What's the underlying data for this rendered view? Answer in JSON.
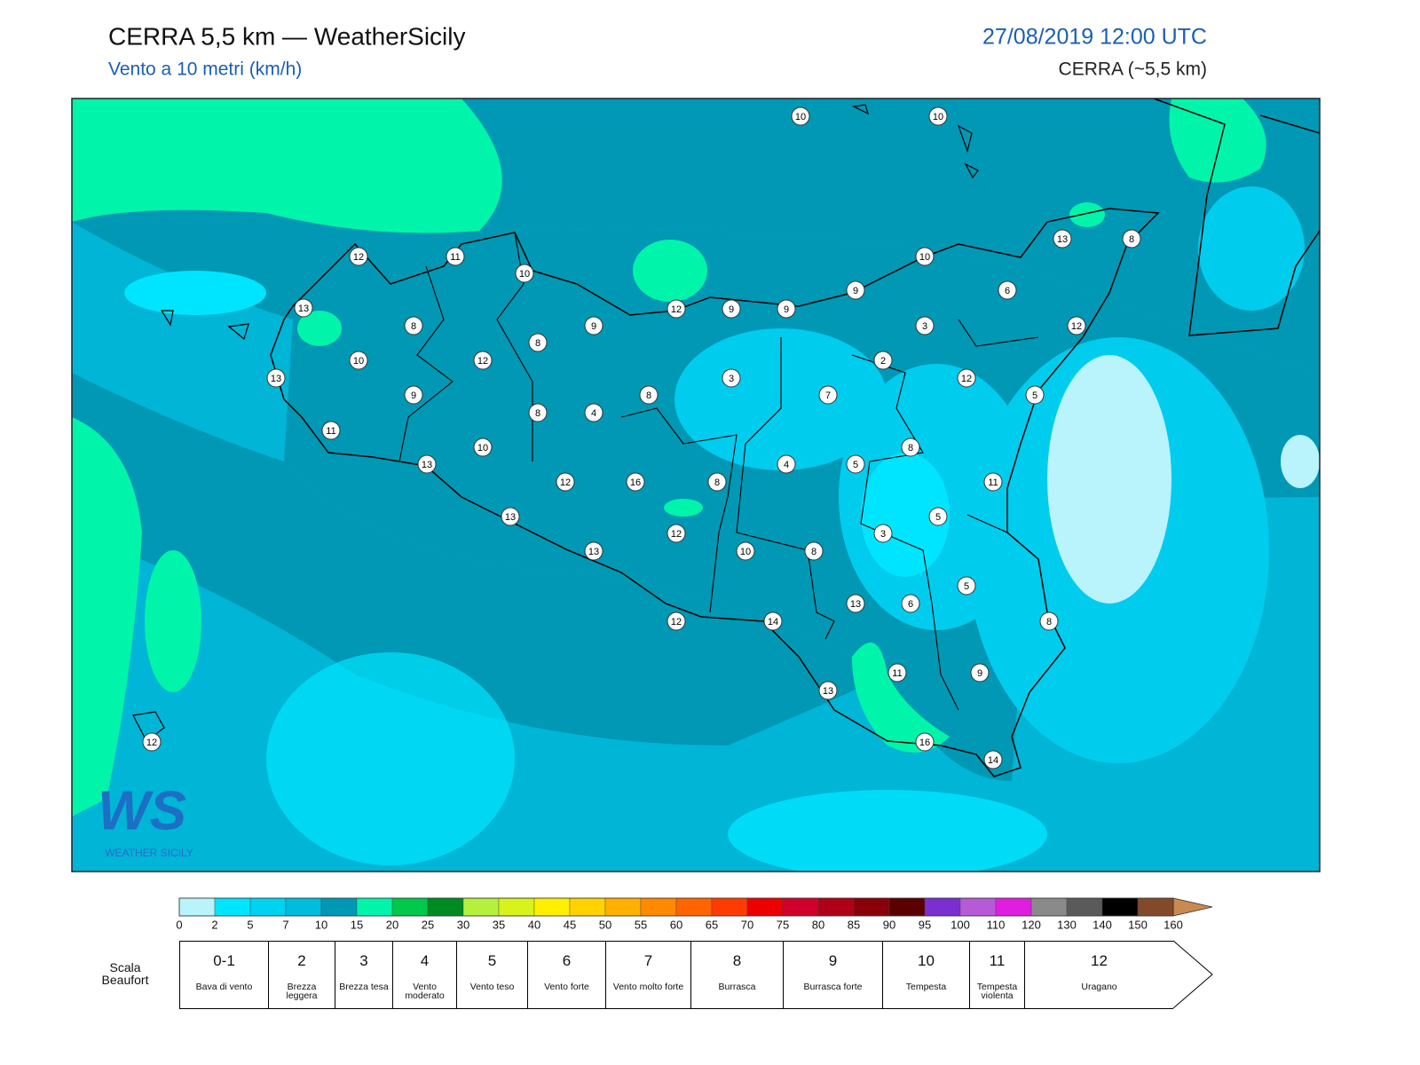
{
  "header": {
    "title": "CERRA 5,5 km — WeatherSicily",
    "subtitle": "Vento a 10 metri (km/h)",
    "date": "27/08/2019 12:00 UTC",
    "model": "CERRA (~5,5 km)"
  },
  "logo": {
    "mark": "WS",
    "text": "WEATHER SICILY"
  },
  "stations": [
    10,
    10,
    12,
    11,
    10,
    13,
    12,
    9,
    9,
    9,
    10,
    13,
    8,
    6,
    8,
    9,
    8,
    10,
    12,
    3,
    2,
    13,
    3,
    12,
    12,
    9,
    8,
    7,
    5,
    8,
    4,
    11,
    10,
    8,
    13,
    4,
    5,
    12,
    16,
    8,
    11,
    13,
    5,
    3,
    12,
    13,
    10,
    8,
    5,
    13,
    6,
    12,
    14,
    8,
    11,
    9,
    13,
    12,
    16,
    14
  ],
  "colorbar": {
    "ticks": [
      0,
      2,
      5,
      7,
      10,
      15,
      20,
      25,
      30,
      35,
      40,
      45,
      50,
      55,
      60,
      65,
      70,
      75,
      80,
      85,
      90,
      95,
      100,
      110,
      120,
      130,
      140,
      150,
      160
    ],
    "colors": [
      "#b9f3fb",
      "#00e5ff",
      "#00d2f2",
      "#00bcdd",
      "#0099b5",
      "#00f5aa",
      "#00c84a",
      "#008a22",
      "#b4f03c",
      "#d8f21c",
      "#fff000",
      "#ffd200",
      "#ffb000",
      "#ff8a00",
      "#ff6400",
      "#ff3c00",
      "#ec0000",
      "#d0002a",
      "#b00018",
      "#8a0008",
      "#5a0000",
      "#7b2fd0",
      "#b65ad8",
      "#e01ee0",
      "#8a8a8a",
      "#5a5a5a",
      "#000000",
      "#824a2a",
      "#c88a50"
    ]
  },
  "beaufort": {
    "label": "Scala Beaufort",
    "levels": [
      {
        "force": "0-1",
        "name": "Bava di vento"
      },
      {
        "force": 2,
        "name": "Brezza leggera"
      },
      {
        "force": 3,
        "name": "Brezza tesa"
      },
      {
        "force": 4,
        "name": "Vento moderato"
      },
      {
        "force": 5,
        "name": "Vento teso"
      },
      {
        "force": 6,
        "name": "Vento forte"
      },
      {
        "force": 7,
        "name": "Vento molto forte"
      },
      {
        "force": 8,
        "name": "Burrasca"
      },
      {
        "force": 9,
        "name": "Burrasca forte"
      },
      {
        "force": 10,
        "name": "Tempesta"
      },
      {
        "force": 11,
        "name": "Tempesta violenta"
      },
      {
        "force": 12,
        "name": "Uragano"
      }
    ]
  }
}
